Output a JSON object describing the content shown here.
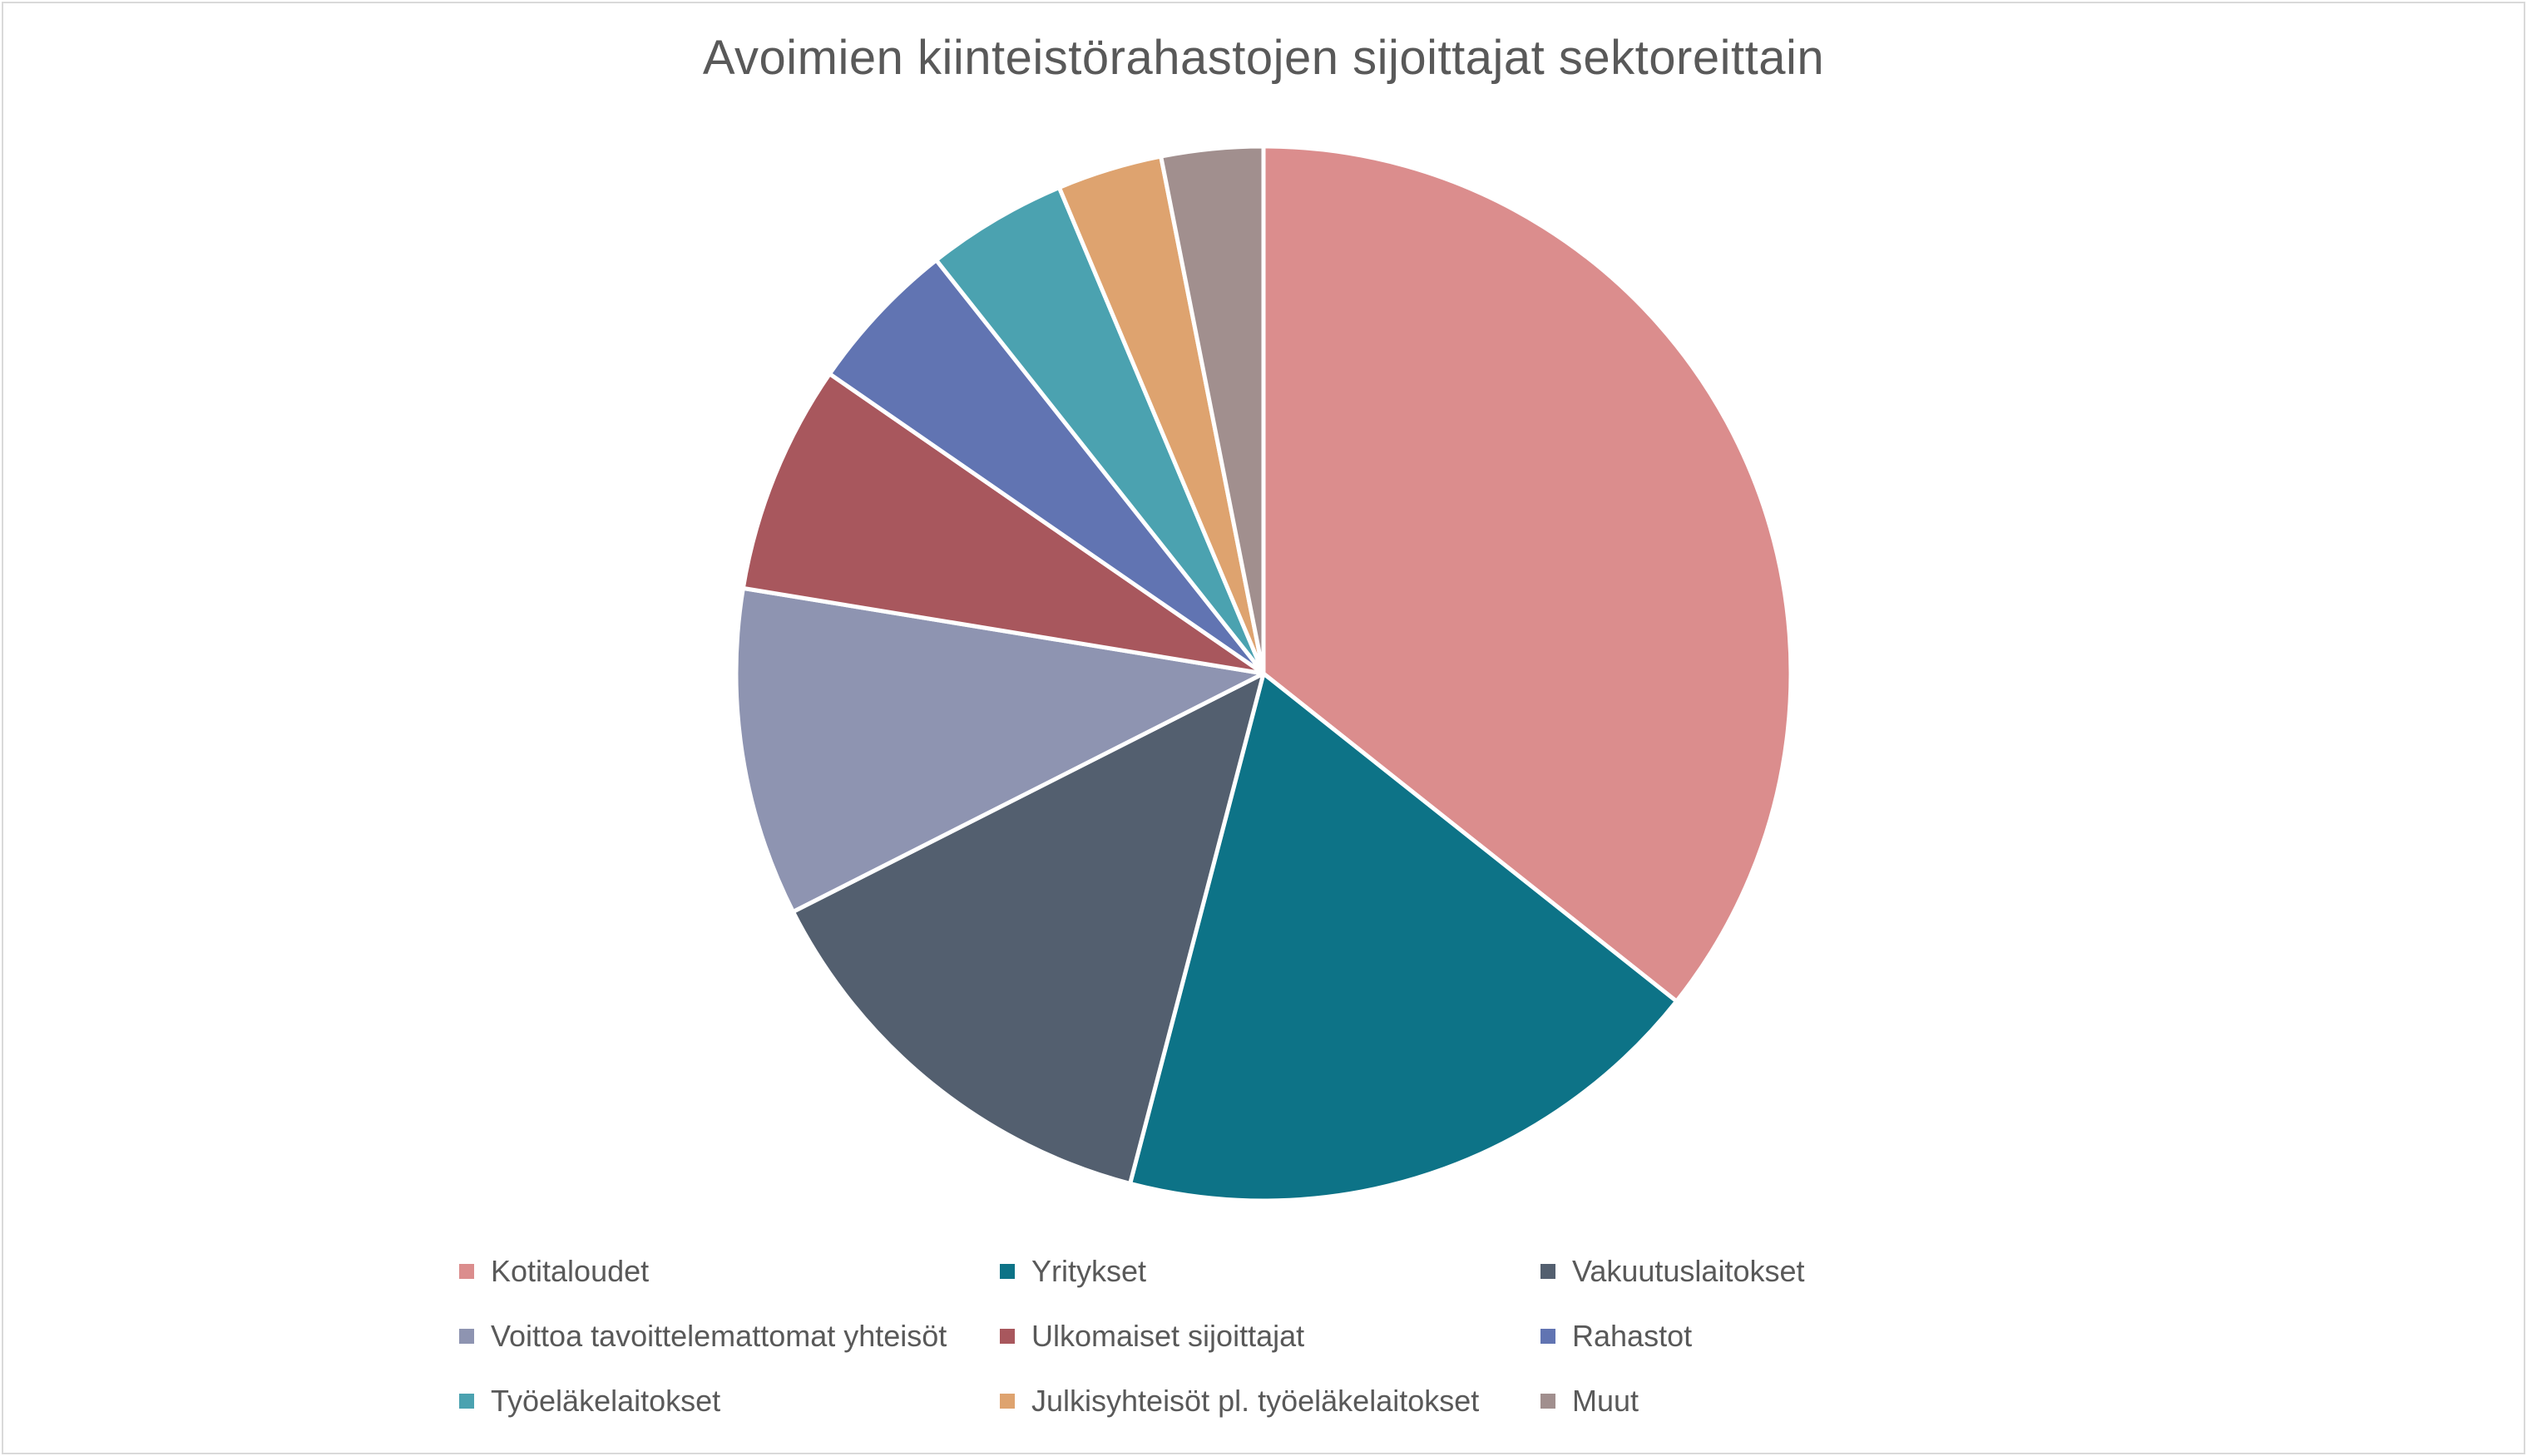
{
  "chart_data": {
    "type": "pie",
    "title": "Avoimien kiinteistörahastojen sijoittajat sektoreittain",
    "categories": [
      "Kotitaloudet",
      "Yritykset",
      "Vakuutuslaitokset",
      "Voittoa tavoittelemattomat yhteisöt",
      "Ulkomaiset sijoittajat",
      "Rahastot",
      "Työeläkelaitokset",
      "Julkisyhteisöt pl. työeläkelaitokset",
      "Muut"
    ],
    "values": [
      35.5,
      18.3,
      13.4,
      10.0,
      7.0,
      4.7,
      4.3,
      3.2,
      3.1
    ],
    "colors": [
      "#db8d8d",
      "#0d7387",
      "#535f6f",
      "#8e94b1",
      "#a8575d",
      "#6174b2",
      "#4ba2b0",
      "#dea36f",
      "#a18f8e"
    ],
    "start_angle_deg": 0,
    "direction": "clockwise",
    "legend_position": "bottom"
  }
}
